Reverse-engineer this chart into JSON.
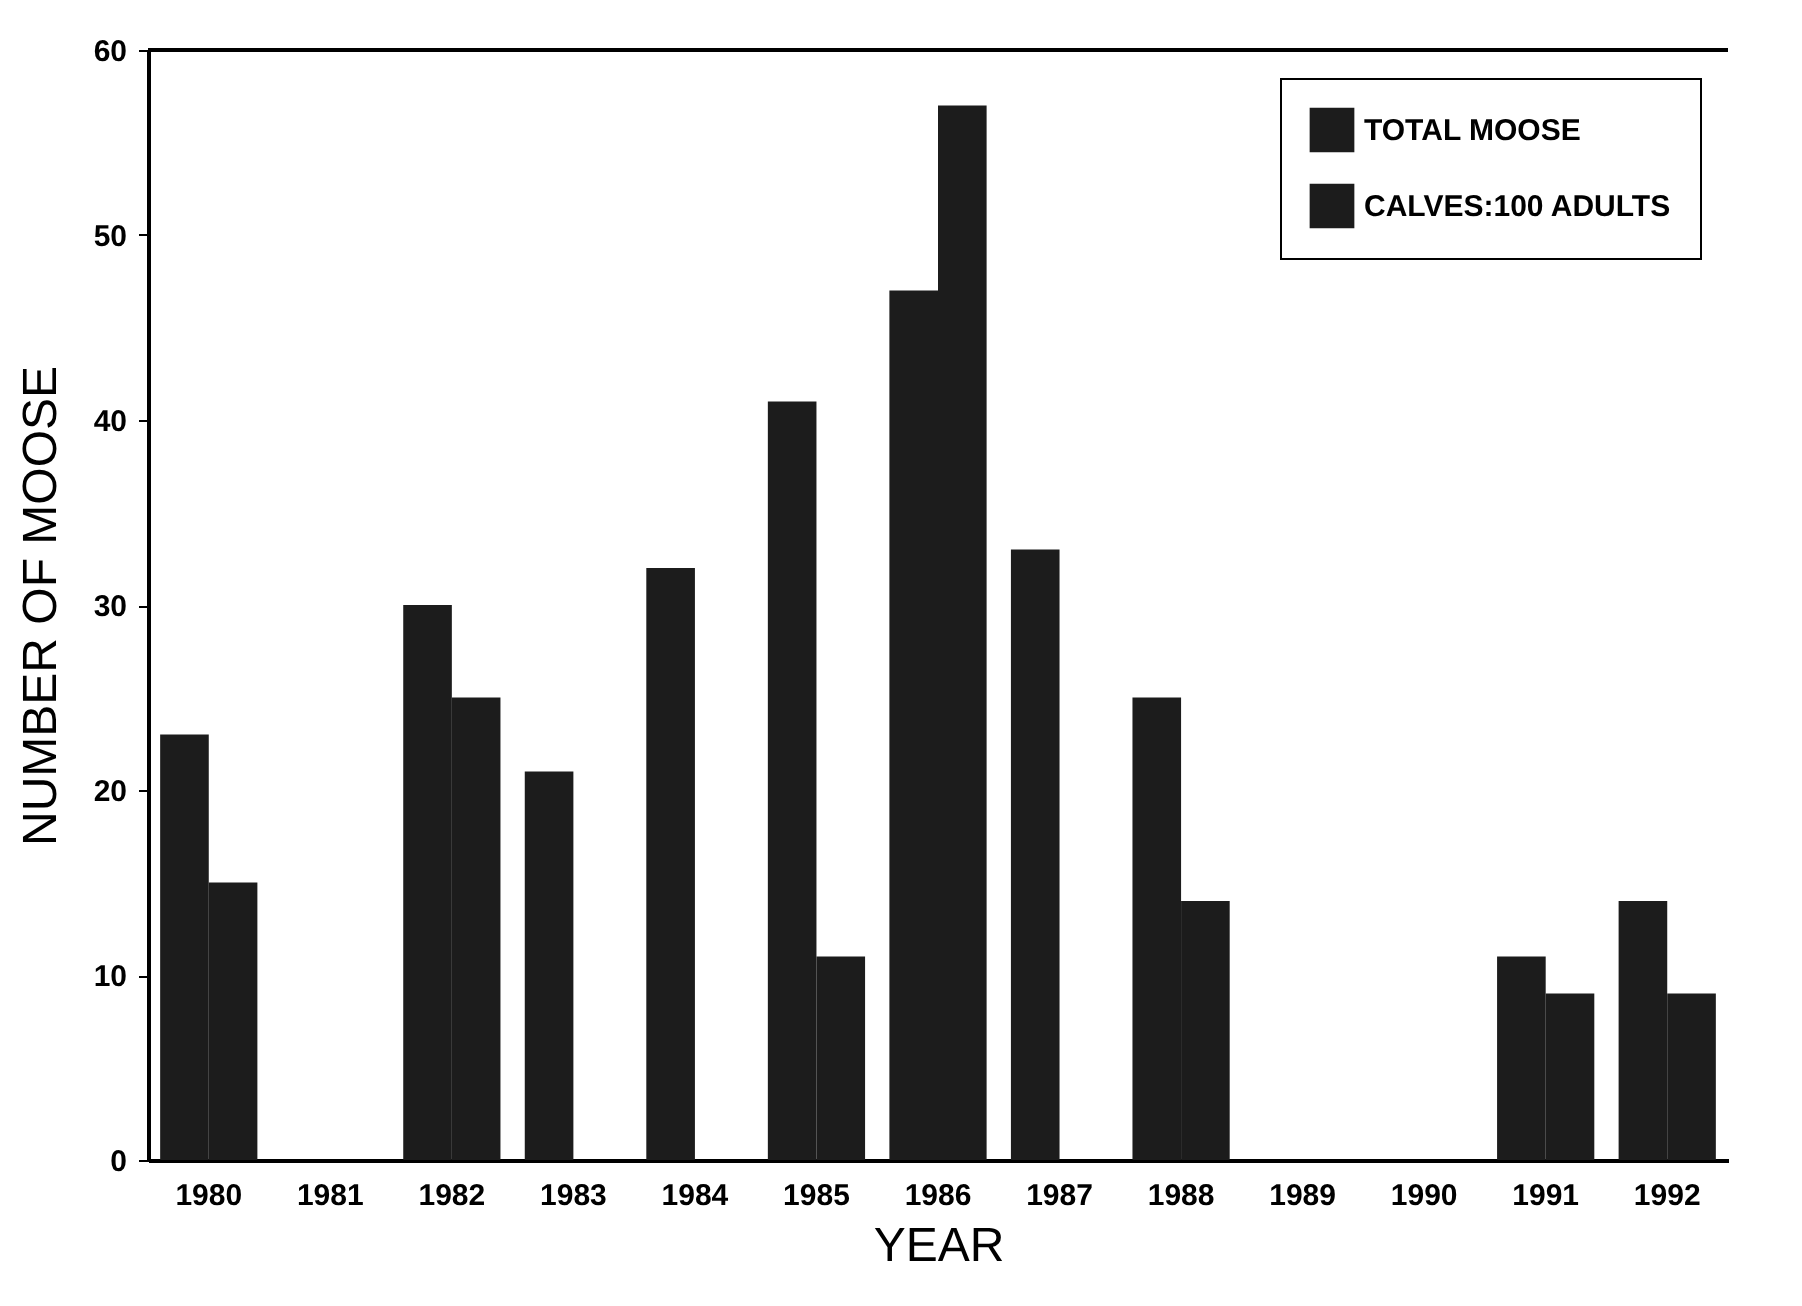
{
  "chart_data": {
    "type": "bar",
    "xlabel": "YEAR",
    "ylabel": "NUMBER OF MOOSE",
    "categories": [
      "1980",
      "1981",
      "1982",
      "1983",
      "1984",
      "1985",
      "1986",
      "1987",
      "1988",
      "1989",
      "1990",
      "1991",
      "1992"
    ],
    "series": [
      {
        "name": "TOTAL MOOSE",
        "color": "#1c1c1c",
        "values": [
          23,
          0,
          30,
          21,
          32,
          41,
          47,
          33,
          25,
          0,
          0,
          11,
          14
        ]
      },
      {
        "name": "CALVES:100 ADULTS",
        "color": "#1c1c1c",
        "values": [
          15,
          0,
          25,
          0,
          0,
          11,
          57,
          0,
          14,
          0,
          0,
          9,
          9
        ]
      }
    ],
    "ylim": [
      0,
      60
    ],
    "yticks": [
      0,
      10,
      20,
      30,
      40,
      50,
      60
    ],
    "grid": false,
    "legend": "top right"
  }
}
